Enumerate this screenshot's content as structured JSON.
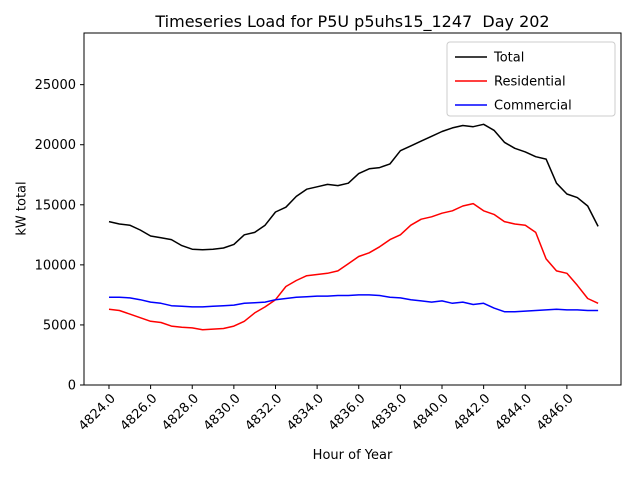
{
  "figure": {
    "background": "#ffffff"
  },
  "chart_data": {
    "type": "line",
    "title": "Timeseries Load for P5U p5uhs15_1247  Day 202",
    "xlabel": "Hour of Year",
    "ylabel": "kW total",
    "xlim": [
      4822.8,
      4848.6
    ],
    "ylim": [
      0,
      29300
    ],
    "grid": false,
    "xticks": [
      4824,
      4826,
      4828,
      4830,
      4832,
      4834,
      4836,
      4838,
      4840,
      4842,
      4844,
      4846
    ],
    "xtick_labels": [
      "4824.0",
      "4826.0",
      "4828.0",
      "4830.0",
      "4832.0",
      "4834.0",
      "4836.0",
      "4838.0",
      "4840.0",
      "4842.0",
      "4844.0",
      "4846.0"
    ],
    "xtick_rotation": 45,
    "yticks": [
      0,
      5000,
      10000,
      15000,
      20000,
      25000
    ],
    "ytick_labels": [
      "0",
      "5000",
      "10000",
      "15000",
      "20000",
      "25000"
    ],
    "legend": {
      "position": "upper right",
      "border_color": "#cccccc",
      "entries": [
        "Total",
        "Residential",
        "Commercial"
      ]
    },
    "x": [
      4824.0,
      4824.5,
      4825.0,
      4825.5,
      4826.0,
      4826.5,
      4827.0,
      4827.5,
      4828.0,
      4828.5,
      4829.0,
      4829.5,
      4830.0,
      4830.5,
      4831.0,
      4831.5,
      4832.0,
      4832.5,
      4833.0,
      4833.5,
      4834.0,
      4834.5,
      4835.0,
      4835.5,
      4836.0,
      4836.5,
      4837.0,
      4837.5,
      4838.0,
      4838.5,
      4839.0,
      4839.5,
      4840.0,
      4840.5,
      4841.0,
      4841.5,
      4842.0,
      4842.5,
      4843.0,
      4843.5,
      4844.0,
      4844.5,
      4845.0,
      4845.5,
      4846.0,
      4846.5,
      4847.0,
      4847.5
    ],
    "series": [
      {
        "name": "Total",
        "color": "#000000",
        "values": [
          13600,
          13400,
          13300,
          12900,
          12400,
          12250,
          12100,
          11600,
          11300,
          11250,
          11300,
          11400,
          11700,
          12500,
          12700,
          13300,
          14400,
          14800,
          15700,
          16300,
          16500,
          16700,
          16600,
          16800,
          17600,
          18000,
          18100,
          18400,
          19500,
          19900,
          20300,
          20700,
          21100,
          21400,
          21600,
          21500,
          21700,
          21200,
          20200,
          19700,
          19400,
          19000,
          18800,
          16800,
          15900,
          15600,
          14900,
          13200
        ]
      },
      {
        "name": "Residential",
        "color": "#ff0000",
        "values": [
          6300,
          6200,
          5900,
          5600,
          5300,
          5200,
          4900,
          4800,
          4750,
          4600,
          4650,
          4700,
          4900,
          5300,
          6000,
          6500,
          7100,
          8200,
          8700,
          9100,
          9200,
          9300,
          9500,
          10100,
          10700,
          11000,
          11500,
          12100,
          12500,
          13300,
          13800,
          14000,
          14300,
          14500,
          14900,
          15100,
          14500,
          14200,
          13600,
          13400,
          13300,
          12700,
          10500,
          9500,
          9300,
          8300,
          7200,
          6800
        ]
      },
      {
        "name": "Commercial",
        "color": "#0000ff",
        "values": [
          7300,
          7300,
          7250,
          7100,
          6900,
          6800,
          6600,
          6550,
          6500,
          6500,
          6550,
          6600,
          6650,
          6800,
          6850,
          6900,
          7100,
          7200,
          7300,
          7350,
          7400,
          7400,
          7450,
          7450,
          7500,
          7500,
          7450,
          7300,
          7250,
          7100,
          7000,
          6900,
          7000,
          6800,
          6900,
          6700,
          6800,
          6400,
          6100,
          6100,
          6150,
          6200,
          6250,
          6300,
          6250,
          6250,
          6200,
          6200
        ]
      }
    ]
  }
}
